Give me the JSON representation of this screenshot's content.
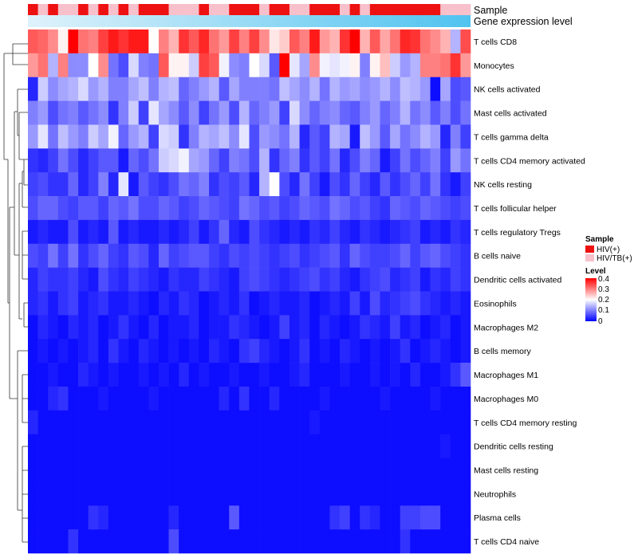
{
  "chart_data": {
    "type": "heatmap",
    "title": "",
    "annotation_rows": [
      {
        "label": "Sample"
      },
      {
        "label": "Gene expression level"
      }
    ],
    "row_labels": [
      "T cells CD8",
      "Monocytes",
      "NK cells activated",
      "Mast cells activated",
      "T cells gamma delta",
      "T cells CD4 memory activated",
      "NK cells resting",
      "T cells follicular helper",
      "T cells regulatory  Tregs",
      "B cells naive",
      "Dendritic cells activated",
      "Eosinophils",
      "Macrophages M2",
      "B cells memory",
      "Macrophages M1",
      "Macrophages M0",
      "T cells CD4 memory resting",
      "Dendritic cells resting",
      "Mast cells resting",
      "Neutrophils",
      "Plasma cells",
      "T cells CD4 naive"
    ],
    "n_samples": 44,
    "sample_groups": [
      "HIV(+)",
      "HIV/TB(+)",
      "HIV(+)",
      "HIV/TB(+)",
      "HIV/TB(+)",
      "HIV(+)",
      "HIV/TB(+)",
      "HIV(+)",
      "HIV/TB(+)",
      "HIV(+)",
      "HIV/TB(+)",
      "HIV(+)",
      "HIV(+)",
      "HIV(+)",
      "HIV/TB(+)",
      "HIV/TB(+)",
      "HIV/TB(+)",
      "HIV(+)",
      "HIV/TB(+)",
      "HIV/TB(+)",
      "HIV(+)",
      "HIV(+)",
      "HIV(+)",
      "HIV/TB(+)",
      "HIV(+)",
      "HIV(+)",
      "HIV/TB(+)",
      "HIV/TB(+)",
      "HIV(+)",
      "HIV(+)",
      "HIV(+)",
      "HIV/TB(+)",
      "HIV(+)",
      "HIV/TB(+)",
      "HIV(+)",
      "HIV(+)",
      "HIV(+)",
      "HIV(+)",
      "HIV(+)",
      "HIV(+)",
      "HIV(+)",
      "HIV/TB(+)",
      "HIV/TB(+)",
      "HIV/TB(+)"
    ],
    "legend_sample": {
      "title": "Sample",
      "entries": [
        {
          "name": "HIV(+)",
          "color": "#ee1111"
        },
        {
          "name": "HIV/TB(+)",
          "color": "#f7c0cb"
        }
      ]
    },
    "legend_level": {
      "title": "Level",
      "ticks": [
        "0.4",
        "0.3",
        "0.2",
        "0.1",
        "0"
      ],
      "range": [
        0,
        0.4
      ],
      "colors": {
        "low": "#0000ff",
        "mid": "#ffffff",
        "high": "#ff0000"
      }
    },
    "matrix": [
      [
        0.33,
        0.32,
        0.29,
        0.21,
        0.4,
        0.31,
        0.3,
        0.35,
        0.38,
        0.36,
        0.38,
        0.38,
        0.2,
        0.3,
        0.26,
        0.36,
        0.33,
        0.37,
        0.31,
        0.28,
        0.35,
        0.3,
        0.35,
        0.29,
        0.22,
        0.24,
        0.33,
        0.3,
        0.38,
        0.28,
        0.26,
        0.36,
        0.4,
        0.26,
        0.33,
        0.27,
        0.31,
        0.37,
        0.36,
        0.31,
        0.29,
        0.26,
        0.14,
        0.34
      ],
      [
        0.28,
        0.31,
        0.14,
        0.3,
        0.11,
        0.11,
        0.2,
        0.29,
        0.09,
        0.06,
        0.17,
        0.1,
        0.09,
        0.33,
        0.21,
        0.21,
        0.16,
        0.35,
        0.33,
        0.19,
        0.11,
        0.1,
        0.2,
        0.17,
        0.07,
        0.4,
        0.18,
        0.13,
        0.29,
        0.19,
        0.18,
        0.19,
        0.21,
        0.1,
        0.21,
        0.25,
        0.16,
        0.12,
        0.14,
        0.3,
        0.3,
        0.31,
        0.36,
        0.28
      ],
      [
        0.03,
        0.16,
        0.11,
        0.13,
        0.14,
        0.17,
        0.12,
        0.14,
        0.1,
        0.1,
        0.13,
        0.15,
        0.1,
        0.14,
        0.15,
        0.08,
        0.1,
        0.12,
        0.14,
        0.07,
        0.13,
        0.1,
        0.1,
        0.1,
        0.09,
        0.15,
        0.13,
        0.11,
        0.14,
        0.09,
        0.14,
        0.12,
        0.13,
        0.11,
        0.12,
        0.14,
        0.11,
        0.15,
        0.14,
        0.12,
        0.01,
        0.13,
        0.06,
        0.07
      ],
      [
        0.1,
        0.12,
        0.06,
        0.09,
        0.1,
        0.07,
        0.09,
        0.11,
        0.04,
        0.1,
        0.16,
        0.05,
        0.18,
        0.13,
        0.11,
        0.07,
        0.11,
        0.05,
        0.09,
        0.12,
        0.06,
        0.14,
        0.08,
        0.1,
        0.12,
        0.05,
        0.17,
        0.11,
        0.08,
        0.1,
        0.11,
        0.08,
        0.07,
        0.1,
        0.12,
        0.08,
        0.1,
        0.14,
        0.09,
        0.11,
        0.07,
        0.1,
        0.06,
        0.09
      ],
      [
        0.12,
        0.18,
        0.09,
        0.15,
        0.12,
        0.1,
        0.16,
        0.13,
        0.19,
        0.08,
        0.12,
        0.14,
        0.05,
        0.17,
        0.16,
        0.04,
        0.1,
        0.14,
        0.13,
        0.15,
        0.11,
        0.18,
        0.06,
        0.12,
        0.11,
        0.09,
        0.14,
        0.03,
        0.07,
        0.05,
        0.14,
        0.13,
        0.02,
        0.15,
        0.12,
        0.07,
        0.13,
        0.09,
        0.11,
        0.14,
        0.12,
        0.03,
        0.1,
        0.05
      ],
      [
        0.04,
        0.03,
        0.05,
        0.09,
        0.06,
        0.03,
        0.05,
        0.07,
        0.07,
        0.02,
        0.08,
        0.06,
        0.09,
        0.16,
        0.17,
        0.19,
        0.13,
        0.12,
        0.08,
        0.05,
        0.1,
        0.09,
        0.06,
        0.14,
        0.04,
        0.08,
        0.1,
        0.04,
        0.07,
        0.05,
        0.09,
        0.03,
        0.06,
        0.1,
        0.08,
        0.02,
        0.05,
        0.09,
        0.06,
        0.08,
        0.1,
        0.05,
        0.12,
        0.09
      ],
      [
        0.05,
        0.06,
        0.04,
        0.04,
        0.08,
        0.03,
        0.05,
        0.1,
        0.03,
        0.18,
        0.02,
        0.07,
        0.05,
        0.04,
        0.06,
        0.09,
        0.08,
        0.1,
        0.04,
        0.06,
        0.05,
        0.07,
        0.03,
        0.14,
        0.2,
        0.06,
        0.03,
        0.09,
        0.05,
        0.02,
        0.06,
        0.04,
        0.08,
        0.05,
        0.03,
        0.07,
        0.04,
        0.06,
        0.08,
        0.05,
        0.09,
        0.04,
        0.02,
        0.05
      ],
      [
        0.06,
        0.08,
        0.08,
        0.06,
        0.05,
        0.07,
        0.07,
        0.05,
        0.08,
        0.07,
        0.09,
        0.06,
        0.06,
        0.08,
        0.07,
        0.05,
        0.06,
        0.08,
        0.07,
        0.06,
        0.05,
        0.09,
        0.08,
        0.06,
        0.07,
        0.05,
        0.06,
        0.08,
        0.07,
        0.06,
        0.09,
        0.08,
        0.06,
        0.07,
        0.05,
        0.04,
        0.08,
        0.07,
        0.06,
        0.08,
        0.07,
        0.06,
        0.05,
        0.06
      ],
      [
        0.02,
        0.03,
        0.02,
        0.02,
        0.06,
        0.02,
        0.03,
        0.02,
        0.07,
        0.02,
        0.03,
        0.02,
        0.02,
        0.03,
        0.02,
        0.03,
        0.05,
        0.02,
        0.04,
        0.08,
        0.03,
        0.02,
        0.06,
        0.04,
        0.03,
        0.02,
        0.03,
        0.02,
        0.04,
        0.03,
        0.05,
        0.03,
        0.02,
        0.04,
        0.03,
        0.02,
        0.03,
        0.04,
        0.05,
        0.02,
        0.03,
        0.02,
        0.04,
        0.03
      ],
      [
        0.06,
        0.05,
        0.09,
        0.05,
        0.09,
        0.04,
        0.06,
        0.08,
        0.05,
        0.04,
        0.07,
        0.06,
        0.03,
        0.08,
        0.05,
        0.06,
        0.07,
        0.07,
        0.05,
        0.04,
        0.06,
        0.05,
        0.06,
        0.05,
        0.04,
        0.05,
        0.06,
        0.04,
        0.05,
        0.06,
        0.07,
        0.04,
        0.08,
        0.06,
        0.05,
        0.05,
        0.06,
        0.08,
        0.05,
        0.07,
        0.08,
        0.06,
        0.05,
        0.04
      ],
      [
        0.03,
        0.05,
        0.04,
        0.04,
        0.05,
        0.03,
        0.02,
        0.06,
        0.04,
        0.03,
        0.05,
        0.04,
        0.03,
        0.02,
        0.04,
        0.03,
        0.03,
        0.05,
        0.04,
        0.03,
        0.02,
        0.05,
        0.06,
        0.05,
        0.04,
        0.03,
        0.04,
        0.05,
        0.06,
        0.04,
        0.05,
        0.03,
        0.02,
        0.04,
        0.05,
        0.06,
        0.03,
        0.04,
        0.05,
        0.02,
        0.04,
        0.03,
        0.05,
        0.04
      ],
      [
        0.03,
        0.04,
        0.02,
        0.04,
        0.05,
        0.02,
        0.03,
        0.04,
        0.02,
        0.02,
        0.03,
        0.02,
        0.01,
        0.03,
        0.02,
        0.04,
        0.03,
        0.01,
        0.02,
        0.03,
        0.02,
        0.04,
        0.01,
        0.02,
        0.03,
        0.02,
        0.02,
        0.03,
        0.01,
        0.02,
        0.03,
        0.02,
        0.05,
        0.02,
        0.06,
        0.03,
        0.04,
        0.05,
        0.06,
        0.04,
        0.03,
        0.02,
        0.03,
        0.02
      ],
      [
        0.01,
        0.03,
        0.02,
        0.01,
        0.03,
        0.02,
        0.03,
        0.01,
        0.02,
        0.04,
        0.02,
        0.01,
        0.03,
        0.01,
        0.02,
        0.02,
        0.03,
        0.01,
        0.02,
        0.02,
        0.04,
        0.03,
        0.02,
        0.01,
        0.02,
        0.05,
        0.02,
        0.03,
        0.01,
        0.03,
        0.02,
        0.01,
        0.02,
        0.04,
        0.03,
        0.02,
        0.05,
        0.02,
        0.03,
        0.01,
        0.02,
        0.03,
        0.01,
        0.02
      ],
      [
        0.01,
        0.02,
        0.01,
        0.02,
        0.01,
        0.02,
        0.03,
        0.01,
        0.04,
        0.02,
        0.01,
        0.03,
        0.02,
        0.01,
        0.02,
        0.01,
        0.02,
        0.01,
        0.03,
        0.02,
        0.01,
        0.04,
        0.05,
        0.03,
        0.02,
        0.01,
        0.02,
        0.04,
        0.01,
        0.02,
        0.01,
        0.03,
        0.02,
        0.01,
        0.02,
        0.01,
        0.02,
        0.04,
        0.01,
        0.02,
        0.03,
        0.02,
        0.01,
        0.02
      ],
      [
        0.01,
        0.01,
        0.02,
        0.01,
        0.01,
        0.03,
        0.02,
        0.01,
        0.02,
        0.01,
        0.01,
        0.02,
        0.01,
        0.02,
        0.01,
        0.03,
        0.01,
        0.02,
        0.01,
        0.01,
        0.02,
        0.01,
        0.01,
        0.02,
        0.01,
        0.01,
        0.02,
        0.03,
        0.01,
        0.01,
        0.01,
        0.02,
        0.01,
        0.01,
        0.02,
        0.01,
        0.02,
        0.01,
        0.03,
        0.01,
        0.01,
        0.02,
        0.04,
        0.07
      ],
      [
        0.01,
        0.01,
        0.03,
        0.04,
        0.01,
        0.01,
        0.01,
        0.02,
        0.01,
        0.01,
        0.01,
        0.01,
        0.02,
        0.01,
        0.01,
        0.01,
        0.01,
        0.01,
        0.01,
        0.03,
        0.01,
        0.04,
        0.01,
        0.01,
        0.03,
        0.01,
        0.01,
        0.01,
        0.01,
        0.02,
        0.01,
        0.01,
        0.01,
        0.01,
        0.01,
        0.02,
        0.01,
        0.01,
        0.01,
        0.01,
        0.02,
        0.01,
        0.01,
        0.01
      ],
      [
        0.03,
        0.01,
        0.01,
        0.01,
        0.01,
        0.01,
        0.01,
        0.01,
        0.01,
        0.01,
        0.01,
        0.01,
        0.01,
        0.01,
        0.01,
        0.01,
        0.01,
        0.01,
        0.01,
        0.01,
        0.01,
        0.01,
        0.01,
        0.01,
        0.01,
        0.01,
        0.01,
        0.01,
        0.02,
        0.01,
        0.01,
        0.01,
        0.01,
        0.01,
        0.01,
        0.01,
        0.01,
        0.01,
        0.01,
        0.01,
        0.01,
        0.01,
        0.01,
        0.01
      ],
      [
        0.01,
        0.01,
        0.01,
        0.01,
        0.01,
        0.01,
        0.01,
        0.01,
        0.01,
        0.01,
        0.01,
        0.01,
        0.01,
        0.01,
        0.01,
        0.01,
        0.01,
        0.01,
        0.01,
        0.01,
        0.01,
        0.01,
        0.01,
        0.01,
        0.01,
        0.01,
        0.01,
        0.01,
        0.01,
        0.01,
        0.01,
        0.01,
        0.01,
        0.01,
        0.01,
        0.01,
        0.01,
        0.01,
        0.01,
        0.01,
        0.01,
        0.02,
        0.01,
        0.01
      ],
      [
        0.01,
        0.01,
        0.01,
        0.01,
        0.01,
        0.01,
        0.01,
        0.01,
        0.01,
        0.01,
        0.01,
        0.01,
        0.01,
        0.01,
        0.01,
        0.01,
        0.01,
        0.01,
        0.01,
        0.01,
        0.01,
        0.01,
        0.01,
        0.01,
        0.01,
        0.01,
        0.01,
        0.01,
        0.01,
        0.01,
        0.01,
        0.01,
        0.01,
        0.01,
        0.01,
        0.01,
        0.01,
        0.01,
        0.01,
        0.01,
        0.01,
        0.01,
        0.01,
        0.01
      ],
      [
        0.01,
        0.01,
        0.01,
        0.01,
        0.01,
        0.01,
        0.01,
        0.01,
        0.01,
        0.01,
        0.01,
        0.01,
        0.01,
        0.01,
        0.01,
        0.01,
        0.01,
        0.01,
        0.01,
        0.01,
        0.01,
        0.01,
        0.01,
        0.01,
        0.01,
        0.01,
        0.01,
        0.01,
        0.01,
        0.01,
        0.01,
        0.01,
        0.01,
        0.01,
        0.01,
        0.01,
        0.01,
        0.01,
        0.01,
        0.01,
        0.01,
        0.01,
        0.01,
        0.01
      ],
      [
        0.01,
        0.01,
        0.01,
        0.01,
        0.01,
        0.01,
        0.04,
        0.03,
        0.01,
        0.01,
        0.01,
        0.01,
        0.01,
        0.01,
        0.03,
        0.01,
        0.01,
        0.01,
        0.01,
        0.01,
        0.07,
        0.01,
        0.01,
        0.01,
        0.01,
        0.01,
        0.01,
        0.01,
        0.01,
        0.01,
        0.04,
        0.05,
        0.01,
        0.04,
        0.03,
        0.01,
        0.01,
        0.05,
        0.05,
        0.06,
        0.06,
        0.01,
        0.01,
        0.01
      ],
      [
        0.01,
        0.01,
        0.01,
        0.01,
        0.04,
        0.01,
        0.01,
        0.01,
        0.01,
        0.01,
        0.01,
        0.01,
        0.01,
        0.01,
        0.06,
        0.01,
        0.01,
        0.01,
        0.01,
        0.01,
        0.01,
        0.01,
        0.01,
        0.01,
        0.01,
        0.01,
        0.01,
        0.01,
        0.01,
        0.01,
        0.01,
        0.01,
        0.01,
        0.01,
        0.01,
        0.01,
        0.01,
        0.04,
        0.01,
        0.01,
        0.01,
        0.01,
        0.01,
        0.01
      ]
    ]
  }
}
